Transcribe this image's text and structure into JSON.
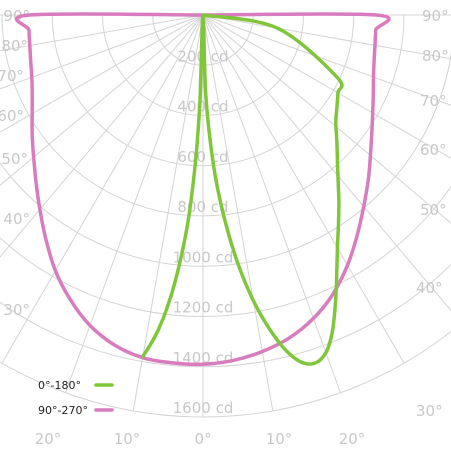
{
  "chart_data": {
    "type": "polar",
    "chart_kind": "luminous intensity distribution (polar candela plot)",
    "radial_unit": "cd",
    "radial_ticks": [
      "200 cd",
      "400 cd",
      "600 cd",
      "800 cd",
      "1000 cd",
      "1200 cd",
      "1400 cd",
      "1600 cd"
    ],
    "radial_max": 1600,
    "angle_labels_left": [
      "90°",
      "80°",
      "70°",
      "60°",
      "50°",
      "40°",
      "30°",
      "20°",
      "10°"
    ],
    "angle_labels_right": [
      "90°",
      "80°",
      "70°",
      "60°",
      "50°",
      "40°",
      "30°",
      "20°",
      "10°"
    ],
    "angle_label_center": "0°",
    "grid": true,
    "legend_position": "bottom-left",
    "series": [
      {
        "name": "0°-180°",
        "color": "#7fc63b",
        "points": [
          {
            "angle": -10,
            "value": 1380
          },
          {
            "angle": -9,
            "value": 1325
          },
          {
            "angle": -8,
            "value": 1260
          },
          {
            "angle": -7,
            "value": 1175
          },
          {
            "angle": -6,
            "value": 1070
          },
          {
            "angle": -5,
            "value": 945
          },
          {
            "angle": -4,
            "value": 800
          },
          {
            "angle": -3,
            "value": 600
          },
          {
            "angle": -2.5,
            "value": 480
          },
          {
            "angle": -2,
            "value": 330
          },
          {
            "angle": 0,
            "value": 0
          },
          {
            "angle": 2,
            "value": 320
          },
          {
            "angle": 4,
            "value": 600
          },
          {
            "angle": 6,
            "value": 815
          },
          {
            "angle": 8,
            "value": 1000
          },
          {
            "angle": 10,
            "value": 1155
          },
          {
            "angle": 12,
            "value": 1280
          },
          {
            "angle": 14,
            "value": 1380
          },
          {
            "angle": 16,
            "value": 1440
          },
          {
            "angle": 18,
            "value": 1455
          },
          {
            "angle": 20,
            "value": 1430
          },
          {
            "angle": 22,
            "value": 1370
          },
          {
            "angle": 24,
            "value": 1290
          },
          {
            "angle": 26,
            "value": 1210
          },
          {
            "angle": 28,
            "value": 1135
          },
          {
            "angle": 30,
            "value": 1070
          },
          {
            "angle": 33,
            "value": 990
          },
          {
            "angle": 36,
            "value": 920
          },
          {
            "angle": 39,
            "value": 855
          },
          {
            "angle": 42,
            "value": 800
          },
          {
            "angle": 45,
            "value": 755
          },
          {
            "angle": 48,
            "value": 715
          },
          {
            "angle": 51,
            "value": 680
          },
          {
            "angle": 55,
            "value": 650
          },
          {
            "angle": 60,
            "value": 620
          },
          {
            "angle": 65,
            "value": 590
          }
        ]
      },
      {
        "name": "90°-270°",
        "color": "#d97bbf",
        "points": [
          {
            "angle": -90,
            "value": 690
          },
          {
            "angle": -85,
            "value": 695
          },
          {
            "angle": -80,
            "value": 700
          },
          {
            "angle": -75,
            "value": 710
          },
          {
            "angle": -70,
            "value": 725
          },
          {
            "angle": -65,
            "value": 750
          },
          {
            "angle": -60,
            "value": 785
          },
          {
            "angle": -55,
            "value": 830
          },
          {
            "angle": -50,
            "value": 880
          },
          {
            "angle": -45,
            "value": 940
          },
          {
            "angle": -40,
            "value": 1010
          },
          {
            "angle": -35,
            "value": 1090
          },
          {
            "angle": -30,
            "value": 1175
          },
          {
            "angle": -25,
            "value": 1250
          },
          {
            "angle": -20,
            "value": 1315
          },
          {
            "angle": -15,
            "value": 1360
          },
          {
            "angle": -10,
            "value": 1385
          },
          {
            "angle": -5,
            "value": 1390
          },
          {
            "angle": 0,
            "value": 1390
          },
          {
            "angle": 5,
            "value": 1380
          },
          {
            "angle": 10,
            "value": 1360
          },
          {
            "angle": 15,
            "value": 1330
          },
          {
            "angle": 20,
            "value": 1285
          },
          {
            "angle": 25,
            "value": 1225
          },
          {
            "angle": 30,
            "value": 1150
          },
          {
            "angle": 35,
            "value": 1070
          },
          {
            "angle": 40,
            "value": 995
          },
          {
            "angle": 45,
            "value": 930
          },
          {
            "angle": 50,
            "value": 870
          },
          {
            "angle": 55,
            "value": 820
          },
          {
            "angle": 60,
            "value": 780
          },
          {
            "angle": 65,
            "value": 748
          },
          {
            "angle": 70,
            "value": 722
          },
          {
            "angle": 75,
            "value": 705
          },
          {
            "angle": 80,
            "value": 695
          },
          {
            "angle": 85,
            "value": 690
          },
          {
            "angle": 90,
            "value": 690
          }
        ]
      }
    ]
  }
}
